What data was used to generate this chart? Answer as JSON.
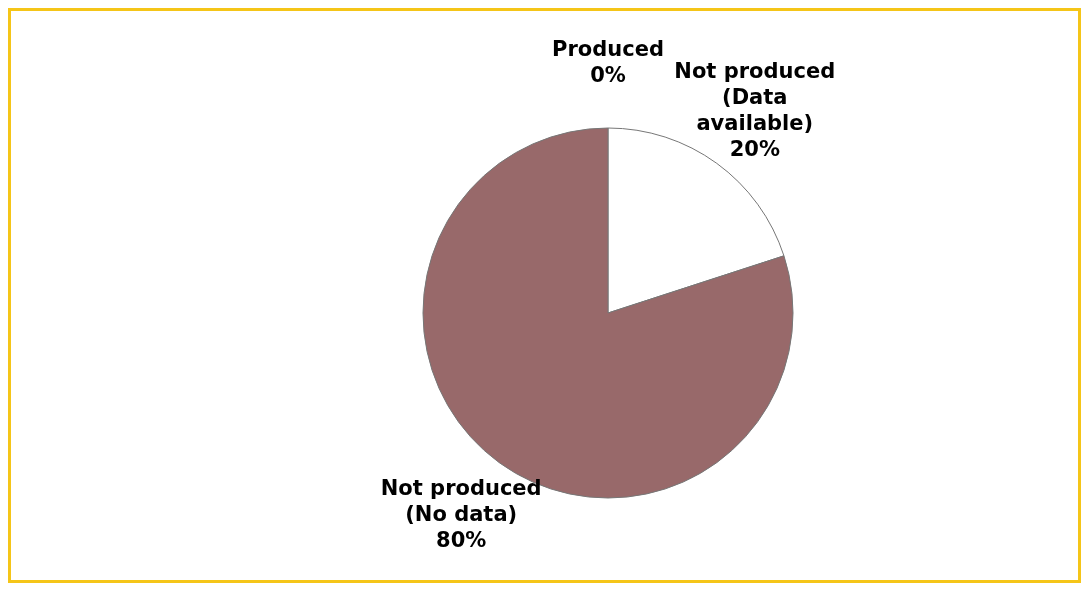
{
  "chart_data": {
    "type": "pie",
    "categories": [
      "Produced",
      "Not produced (Data available)",
      "Not produced (No data)"
    ],
    "values": [
      0,
      20,
      80
    ],
    "value_labels": [
      "0%",
      "20%",
      "80%"
    ],
    "colors": [
      "#c0504d",
      "#ffffff",
      "#98696a"
    ]
  }
}
